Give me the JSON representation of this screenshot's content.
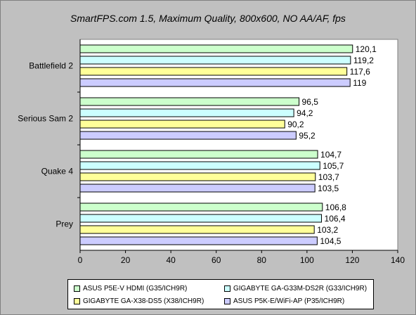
{
  "chart_data": {
    "type": "bar",
    "orientation": "horizontal",
    "title": "SmartFPS.com 1.5, Maximum Quality, 800x600, NO AA/AF, fps",
    "categories": [
      "Battlefield 2",
      "Serious Sam 2",
      "Quake 4",
      "Prey"
    ],
    "series": [
      {
        "name": "ASUS P5E-V HDMI (G35/ICH9R)",
        "color": "#ccffcc",
        "values": [
          120.1,
          96.5,
          104.7,
          106.8
        ],
        "labels": [
          "120,1",
          "96,5",
          "104,7",
          "106,8"
        ]
      },
      {
        "name": "GIGABYTE GA-G33M-DS2R (G33/ICH9R)",
        "color": "#ccffff",
        "values": [
          119.2,
          94.2,
          105.7,
          106.4
        ],
        "labels": [
          "119,2",
          "94,2",
          "105,7",
          "106,4"
        ]
      },
      {
        "name": "GIGABYTE GA-X38-DS5 (X38/ICH9R)",
        "color": "#ffff99",
        "values": [
          117.6,
          90.2,
          103.7,
          103.2
        ],
        "labels": [
          "117,6",
          "90,2",
          "103,7",
          "103,2"
        ]
      },
      {
        "name": "ASUS P5K-E/WiFi-AP (P35/ICH9R)",
        "color": "#ccccff",
        "values": [
          119,
          95.2,
          103.5,
          104.5
        ],
        "labels": [
          "119",
          "95,2",
          "103,5",
          "104,5"
        ]
      }
    ],
    "xlim": [
      0,
      140
    ],
    "xticks": [
      "0",
      "20",
      "40",
      "60",
      "80",
      "100",
      "120",
      "140"
    ],
    "grid": false,
    "legend_position": "bottom"
  }
}
